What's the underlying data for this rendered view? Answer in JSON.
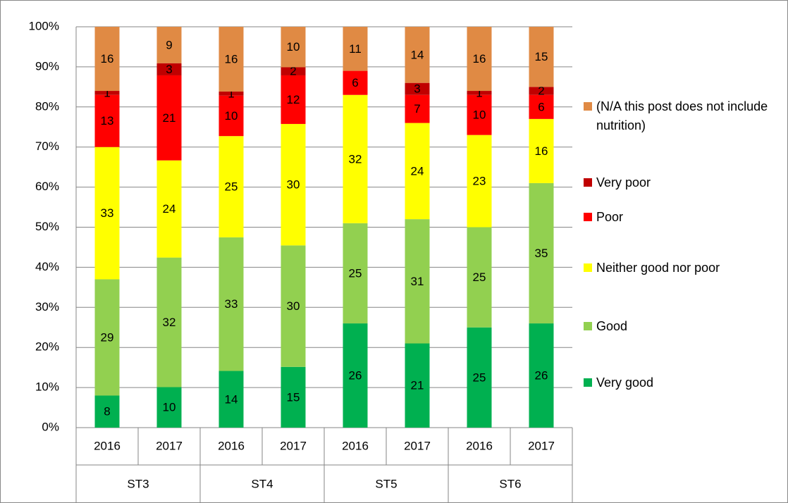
{
  "chart_data": {
    "type": "bar",
    "stacking": "percent",
    "categories": [
      "2016",
      "2017",
      "2016",
      "2017",
      "2016",
      "2017",
      "2016",
      "2017"
    ],
    "groups": [
      "ST3",
      "ST4",
      "ST5",
      "ST6"
    ],
    "series": [
      {
        "name": "Very good",
        "color": "#00b050",
        "values": [
          8,
          10,
          14,
          15,
          26,
          21,
          25,
          26
        ]
      },
      {
        "name": "Good",
        "color": "#92d050",
        "values": [
          29,
          32,
          33,
          30,
          25,
          31,
          25,
          35
        ]
      },
      {
        "name": "Neither good nor poor",
        "color": "#ffff00",
        "values": [
          33,
          24,
          25,
          30,
          32,
          24,
          23,
          16
        ]
      },
      {
        "name": "Poor",
        "color": "#ff0000",
        "values": [
          13,
          21,
          10,
          12,
          6,
          7,
          10,
          6
        ]
      },
      {
        "name": "Very poor",
        "color": "#c00000",
        "values": [
          1,
          3,
          1,
          2,
          null,
          3,
          1,
          2
        ]
      },
      {
        "name": "(N/A this post does not include nutrition)",
        "color": "#e08a44",
        "values": [
          16,
          9,
          16,
          10,
          11,
          14,
          16,
          15
        ]
      }
    ],
    "ylim": [
      0,
      100
    ],
    "yticks": [
      {
        "value": 0,
        "label": "0%"
      },
      {
        "value": 10,
        "label": "10%"
      },
      {
        "value": 20,
        "label": "20%"
      },
      {
        "value": 30,
        "label": "30%"
      },
      {
        "value": 40,
        "label": "40%"
      },
      {
        "value": 50,
        "label": "50%"
      },
      {
        "value": 60,
        "label": "60%"
      },
      {
        "value": 70,
        "label": "70%"
      },
      {
        "value": 80,
        "label": "80%"
      },
      {
        "value": 90,
        "label": "90%"
      },
      {
        "value": 100,
        "label": "100%"
      }
    ],
    "grid": true,
    "legend": "right"
  }
}
